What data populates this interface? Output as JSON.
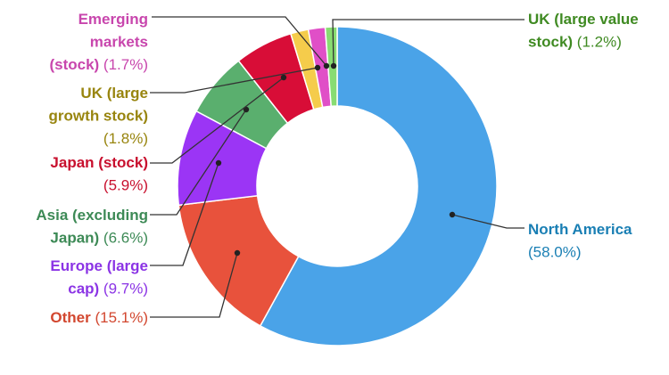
{
  "chart_data": {
    "type": "donut",
    "unit": "%",
    "series": [
      {
        "name": "North America",
        "value": 58.0,
        "color": "#4aa3e8",
        "label_lines": [
          [
            "North America",
            ""
          ],
          [
            "",
            "(58.0%)"
          ]
        ]
      },
      {
        "name": "Other",
        "value": 15.1,
        "color": "#e8523c",
        "label_lines": [
          [
            "Other",
            " (15.1%)"
          ]
        ]
      },
      {
        "name": "Europe (large cap)",
        "value": 9.7,
        "color": "#9b35f5",
        "label_lines": [
          [
            "Europe (large",
            ""
          ],
          [
            "cap)",
            " (9.7%)"
          ]
        ]
      },
      {
        "name": "Asia (excluding Japan)",
        "value": 6.6,
        "color": "#5aaf6e",
        "label_lines": [
          [
            "Asia (excluding",
            ""
          ],
          [
            "Japan)",
            " (6.6%)"
          ]
        ]
      },
      {
        "name": "Japan (stock)",
        "value": 5.9,
        "color": "#d80d37",
        "label_lines": [
          [
            "Japan (stock)",
            ""
          ],
          [
            "",
            "(5.9%)"
          ]
        ]
      },
      {
        "name": "UK (large growth stock)",
        "value": 1.8,
        "color": "#f5cc4b",
        "label_lines": [
          [
            "UK (large",
            ""
          ],
          [
            "growth stock)",
            ""
          ],
          [
            "",
            "(1.8%)"
          ]
        ]
      },
      {
        "name": "Emerging markets (stock)",
        "value": 1.7,
        "color": "#e04fc7",
        "label_lines": [
          [
            "Emerging",
            ""
          ],
          [
            "markets",
            ""
          ],
          [
            "(stock)",
            " (1.7%)"
          ]
        ]
      },
      {
        "name": "UK (large value stock)",
        "value": 1.2,
        "color": "#88dc72",
        "label_lines": [
          [
            "UK (large value",
            ""
          ],
          [
            "stock)",
            " (1.2%)"
          ]
        ]
      }
    ],
    "label_colors": {
      "North America": "#1a7fb4",
      "Other": "#d2472f",
      "Europe (large cap)": "#8b34e5",
      "Asia (excluding Japan)": "#3d8a56",
      "Japan (stock)": "#c8102e",
      "UK (large growth stock)": "#98850f",
      "Emerging markets (stock)": "#c846ad",
      "UK (large value stock)": "#3f8a22"
    }
  }
}
